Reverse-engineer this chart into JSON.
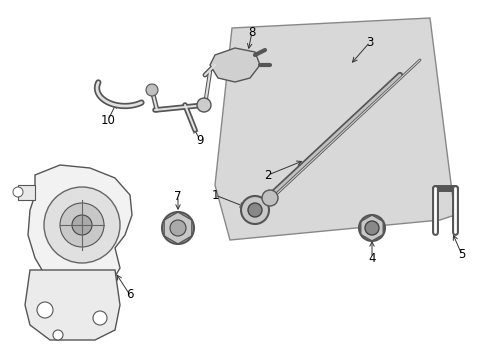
{
  "background_color": "#ffffff",
  "panel_color": "#d8d8d8",
  "panel_edge": "#666666",
  "line_color": "#444444",
  "figsize": [
    4.89,
    3.6
  ],
  "dpi": 100
}
